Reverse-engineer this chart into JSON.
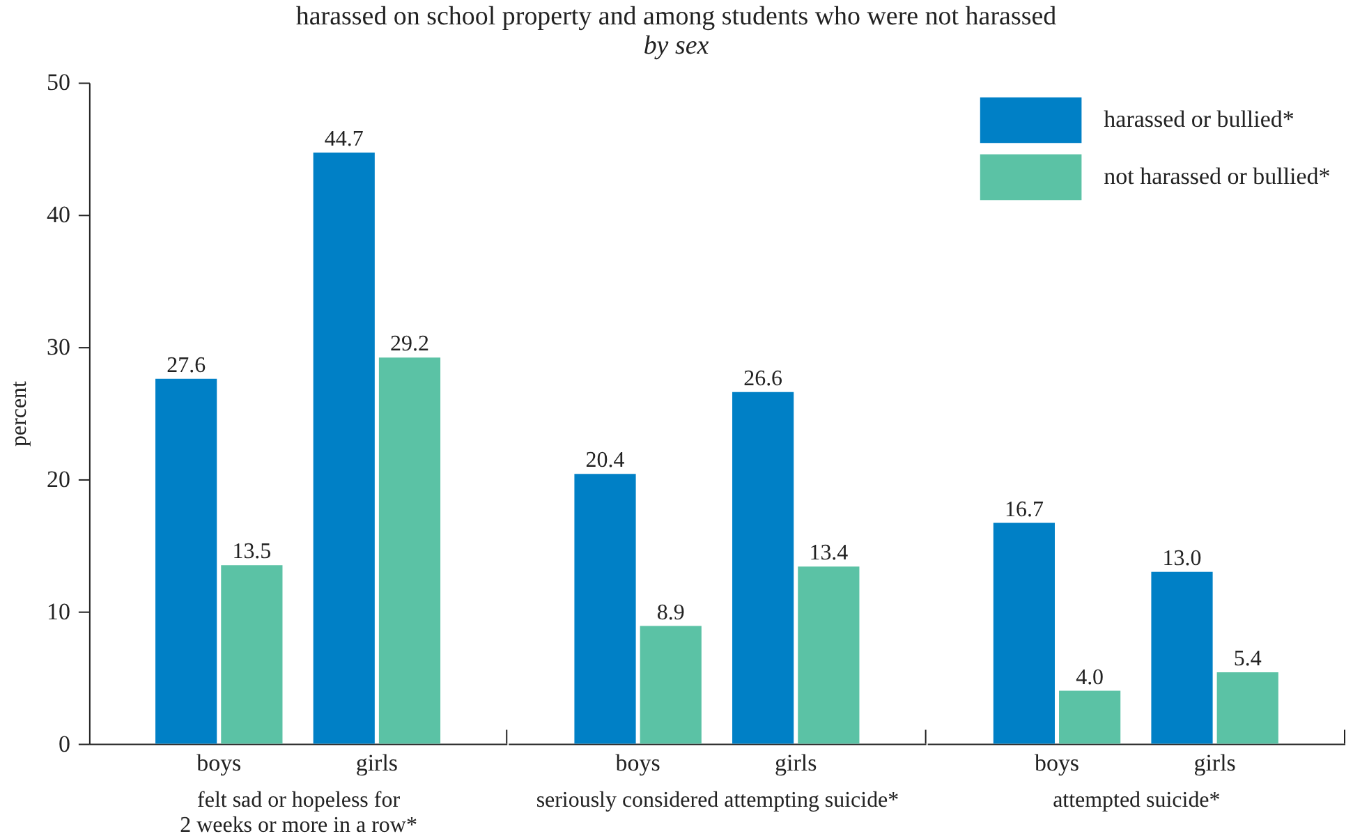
{
  "chart_data": [
    {
      "type": "bar",
      "title": "harassed on school property and among students who were not harassed",
      "xlabel": "felt sad or hopeless for\n2 weeks or more in a row*",
      "ylabel": "percent",
      "categories": [
        "boys",
        "girls"
      ],
      "series": [
        {
          "color": "#0080c6",
          "values": [
            27.6,
            44.7
          ],
          "value_labels": [
            "27.6",
            "44.7"
          ]
        },
        {
          "color": "#5bc2a5",
          "values": [
            13.5,
            29.2
          ],
          "value_labels": [
            "13.5",
            "29.2"
          ]
        }
      ],
      "ylim": [
        0,
        50
      ],
      "yticks": [
        0,
        10,
        20,
        30,
        40,
        50
      ],
      "grid": false
    },
    {
      "type": "bar",
      "subtitle": "by sex",
      "xlabel": "seriously considered attempting suicide*",
      "categories": [
        "boys",
        "girls"
      ],
      "series": [
        {
          "color": "#0080c6",
          "values": [
            20.4,
            26.6
          ],
          "value_labels": [
            "20.4",
            "26.6"
          ]
        },
        {
          "color": "#5bc2a5",
          "values": [
            8.9,
            13.4
          ],
          "value_labels": [
            "8.9",
            "13.4"
          ]
        }
      ],
      "ylim": [
        0,
        50
      ],
      "yticks": [
        0,
        10,
        20,
        30,
        40,
        50
      ],
      "tick_labels": "x",
      "grid": false
    },
    {
      "type": "bar",
      "xlabel": "attempted suicide*",
      "categories": [
        "boys",
        "girls"
      ],
      "series": [
        {
          "name": "harassed or bullied*",
          "color": "#0080c6",
          "values": [
            16.7,
            13.0
          ],
          "value_labels": [
            "16.7",
            "13.0"
          ]
        },
        {
          "name": "not harassed or bullied*",
          "color": "#5bc2a5",
          "values": [
            4.0,
            5.4
          ],
          "value_labels": [
            "4.0",
            "5.4"
          ]
        }
      ],
      "ylim": [
        0,
        50
      ],
      "yticks": [
        0,
        10,
        20,
        30,
        40,
        50
      ],
      "tick_labels": "x",
      "legend": "top right",
      "grid": false
    }
  ]
}
